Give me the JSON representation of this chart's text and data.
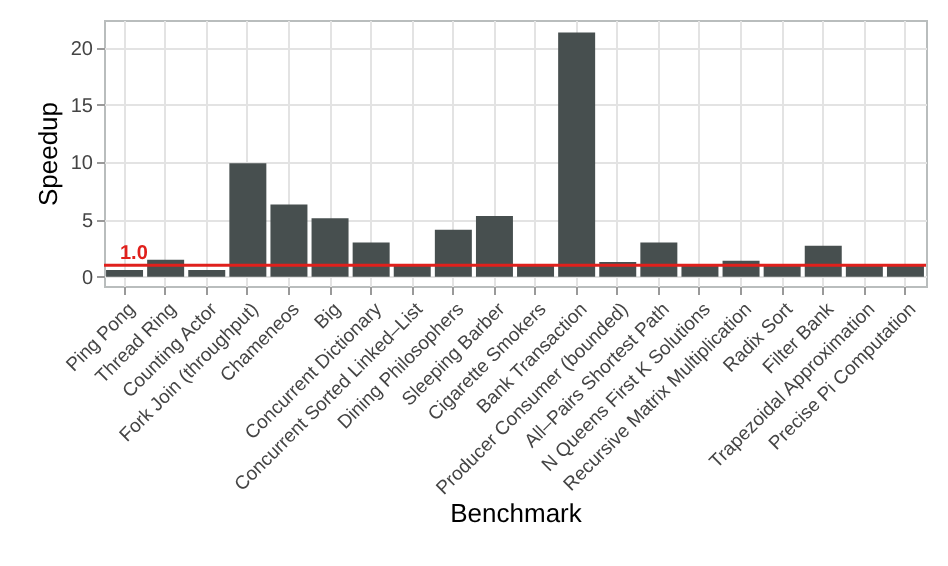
{
  "chart_data": {
    "type": "bar",
    "xlabel": "Benchmark",
    "ylabel": "Speedup",
    "categories": [
      "Ping Pong",
      "Thread Ring",
      "Counting Actor",
      "Fork Join (throughput)",
      "Chameneos",
      "Big",
      "Concurrent Dictionary",
      "Concurrent Sorted Linked–List",
      "Dining Philosophers",
      "Sleeping Barber",
      "Cigarette Smokers",
      "Bank Transaction",
      "Producer Consumer (bounded)",
      "All–Pairs Shortest Path",
      "N Queens First K Solutions",
      "Recursive Matrix Multiplication",
      "Radix Sort",
      "Filter Bank",
      "Trapezoidal Approximation",
      "Precise Pi Computation"
    ],
    "values": [
      0.6,
      1.5,
      0.6,
      9.9,
      6.3,
      5.1,
      3.0,
      1.0,
      4.1,
      5.3,
      1.0,
      21.3,
      1.3,
      3.0,
      1.0,
      1.4,
      1.1,
      2.7,
      1.0,
      1.1
    ],
    "color": "#474f4f",
    "ylim": [
      -0.8,
      22.4
    ],
    "yticks": [
      0,
      5,
      10,
      15,
      20
    ],
    "grid": true,
    "ref_lines": [
      {
        "axis": "y",
        "value": 1,
        "label": "1.0",
        "color": "#e0201c"
      }
    ]
  }
}
